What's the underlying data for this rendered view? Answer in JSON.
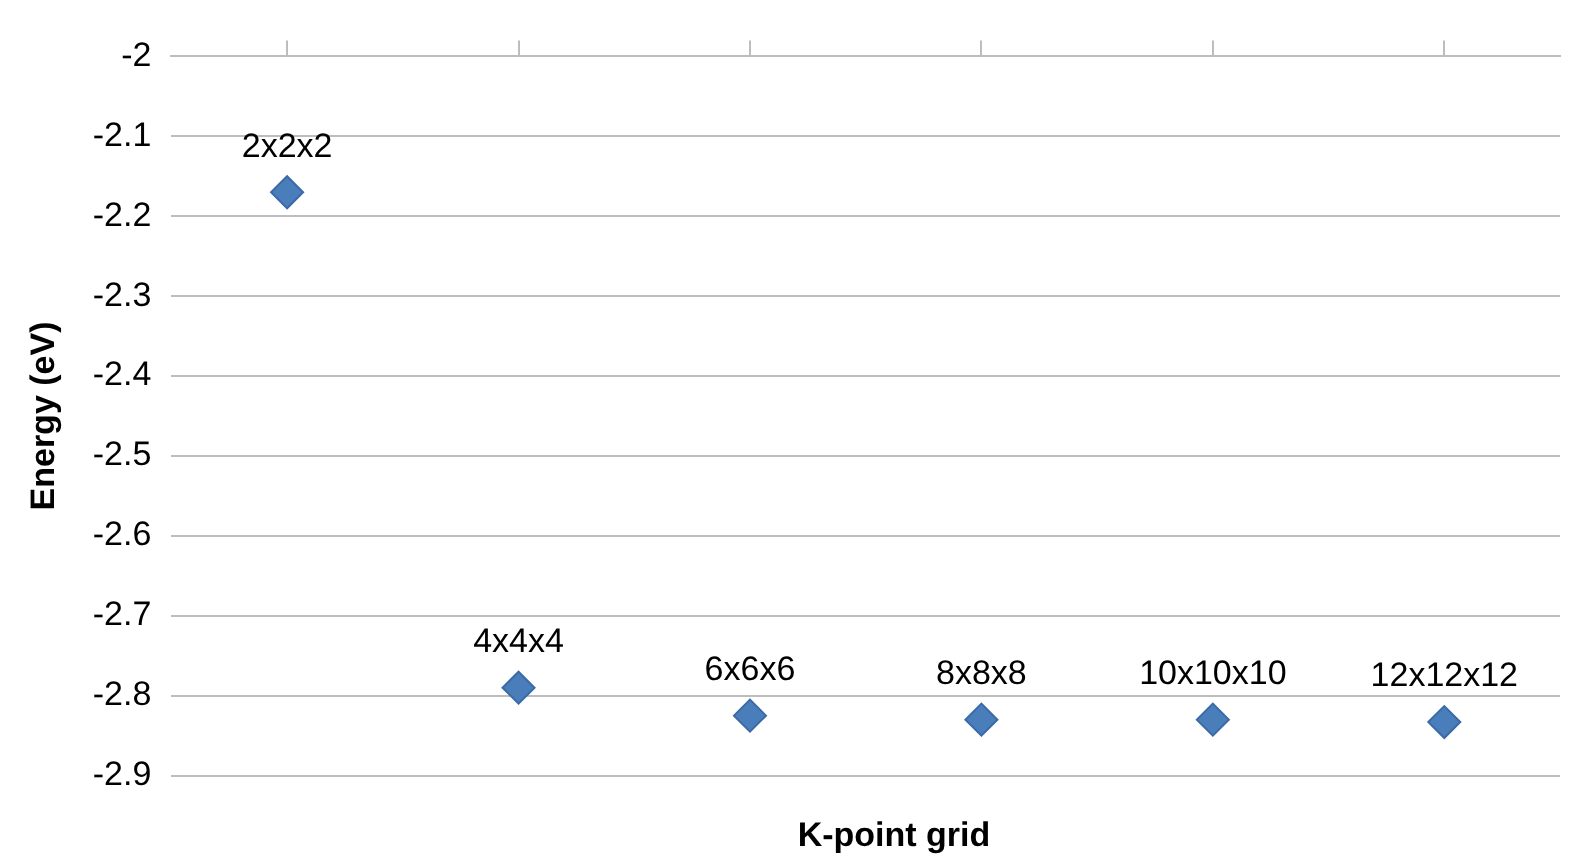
{
  "chart_data": {
    "type": "scatter",
    "xlabel": "K-point grid",
    "ylabel": "Energy (eV)",
    "categories": [
      null,
      null,
      null,
      null,
      null,
      null
    ],
    "series": [
      {
        "color": "#4a7ebb",
        "values": [
          -2.17,
          -2.79,
          -2.825,
          -2.83,
          -2.83,
          -2.833
        ]
      }
    ],
    "annotations": [
      {
        "text": "2x2x2",
        "y": -2.17
      },
      {
        "text": "4x4x4",
        "y": -2.79
      },
      {
        "text": "6x6x6",
        "y": -2.825
      },
      {
        "text": "8x8x8",
        "y": -2.83
      },
      {
        "text": "10x10x10",
        "y": -2.83
      },
      {
        "text": "12x12x12",
        "y": -2.833
      }
    ],
    "ylim": [
      -2.9,
      -2
    ],
    "yticks": [
      -2,
      -2.1,
      -2.2,
      -2.3,
      -2.4,
      -2.5,
      -2.6,
      -2.7,
      -2.8,
      -2.9
    ],
    "grid": "y",
    "marker": "diamond",
    "legend": false,
    "tick_labels": "y"
  }
}
